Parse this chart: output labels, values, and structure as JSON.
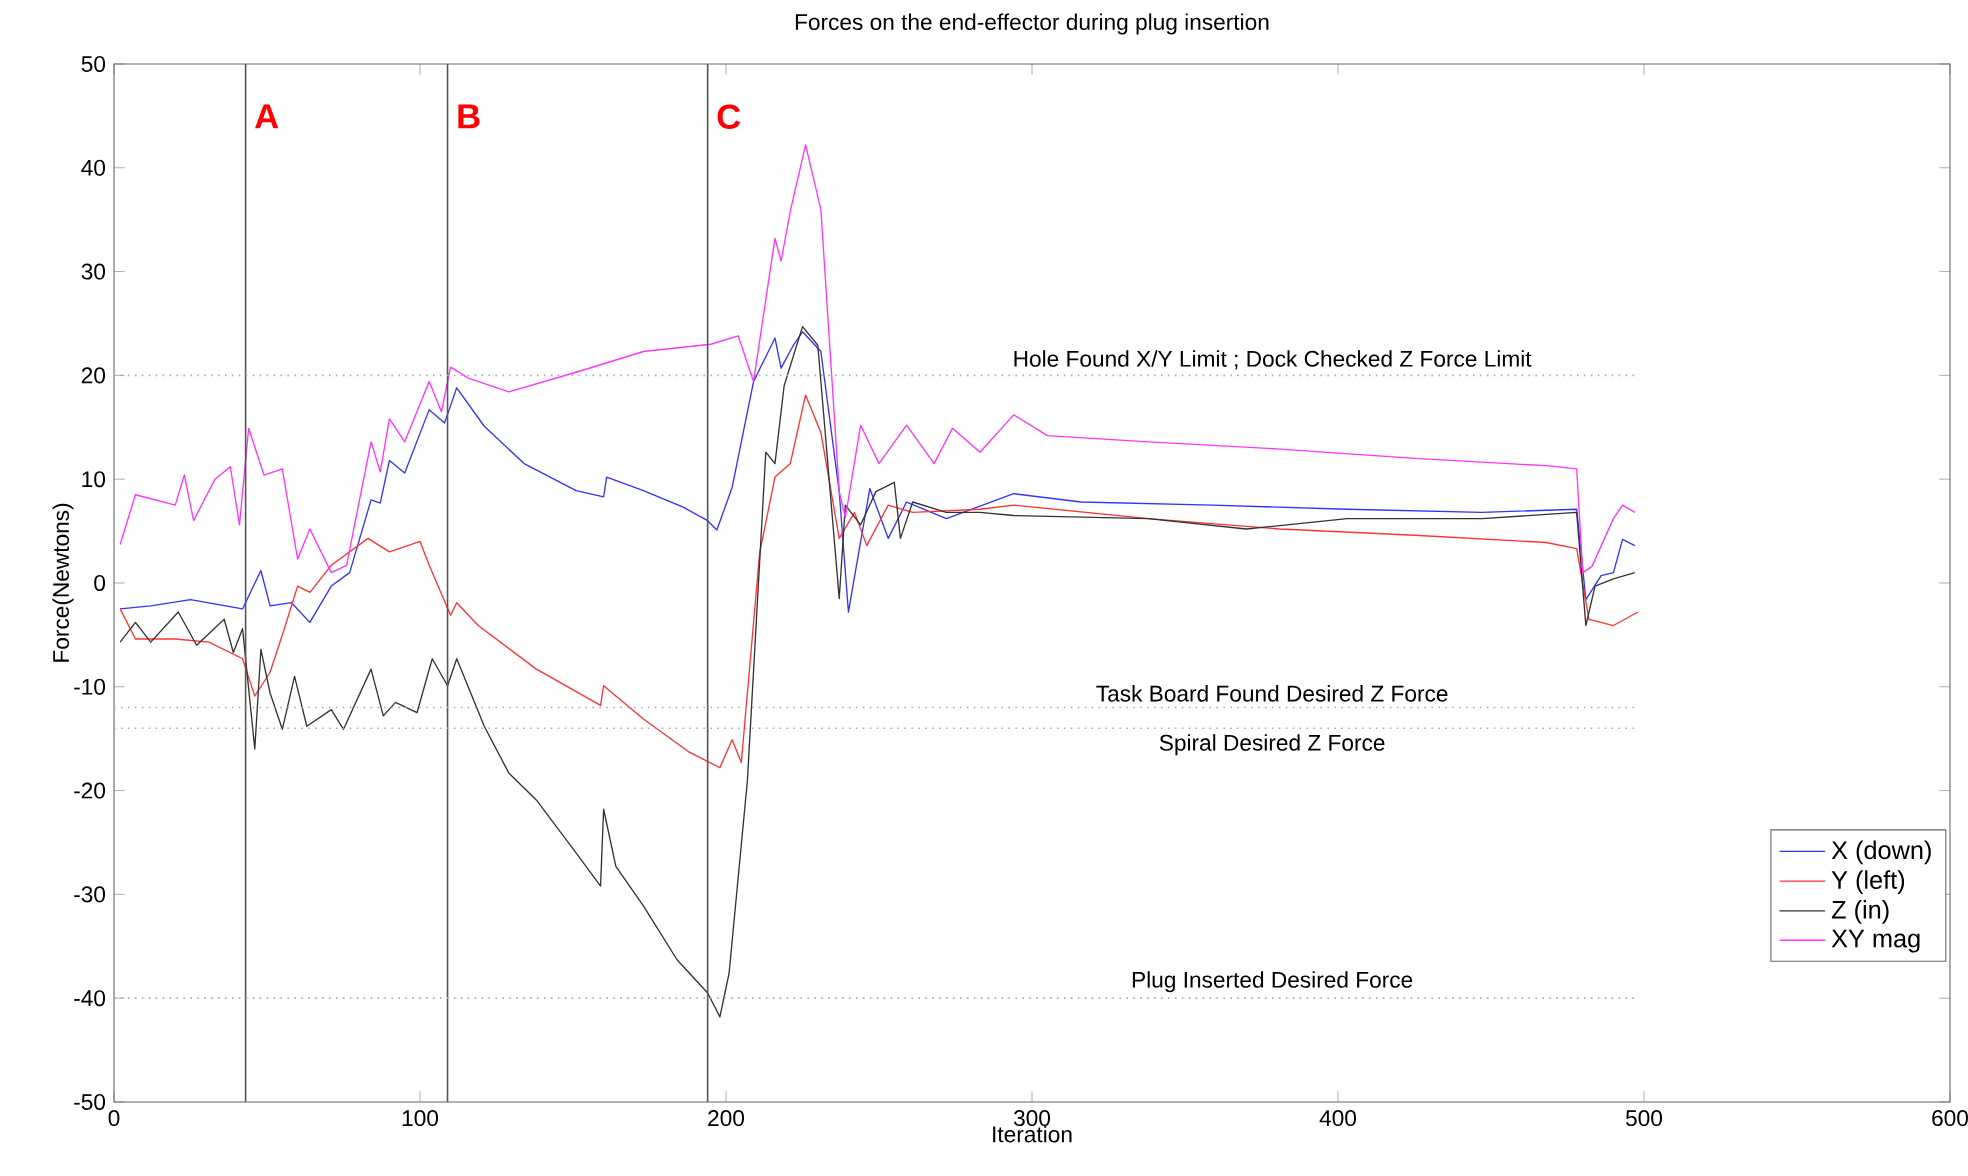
{
  "chart_data": {
    "type": "line",
    "title": "Forces on the end-effector during plug insertion",
    "xlabel": "Iteration",
    "ylabel": "Force(Newtons)",
    "xlim": [
      0,
      600
    ],
    "xticks": [
      0,
      100,
      200,
      300,
      400,
      500,
      600
    ],
    "ylim": [
      -50,
      50
    ],
    "yticks": [
      -50,
      -40,
      -30,
      -20,
      -10,
      0,
      10,
      20,
      30,
      40,
      50
    ],
    "grid": false,
    "legend": "bottom right",
    "marker": "none",
    "line_style": "solid",
    "series": [
      {
        "name": "X (down)",
        "color": "#3333ff",
        "x": [
          2,
          12,
          25,
          42,
          48,
          51,
          58,
          64,
          71,
          77,
          84,
          87,
          90,
          95,
          103,
          108,
          112,
          121,
          134,
          151,
          160,
          161,
          173,
          186,
          194,
          197,
          202,
          209,
          216,
          218,
          222,
          225,
          231,
          237,
          240,
          247,
          253,
          259,
          272,
          294,
          316,
          359,
          403,
          447,
          478,
          481,
          486,
          490,
          493,
          497
        ],
        "values": [
          -2.5,
          -2.2,
          -1.6,
          -2.5,
          1.2,
          -2.2,
          -1.9,
          -3.8,
          -0.3,
          1.0,
          8.0,
          7.7,
          11.8,
          10.6,
          16.7,
          15.4,
          18.8,
          15.1,
          11.5,
          8.9,
          8.3,
          10.2,
          8.9,
          7.3,
          6.0,
          5.1,
          9.2,
          19.4,
          23.6,
          20.7,
          22.9,
          24.2,
          22.3,
          8.8,
          -2.8,
          9.1,
          4.3,
          7.8,
          6.2,
          8.6,
          7.8,
          7.5,
          7.1,
          6.8,
          7.1,
          -1.6,
          0.7,
          1.0,
          4.2,
          3.6
        ]
      },
      {
        "name": "Y (left)",
        "color": "#ff3333",
        "x": [
          2,
          7,
          20,
          31,
          42,
          46,
          51,
          56,
          60,
          64,
          71,
          83,
          90,
          100,
          103,
          110,
          112,
          119,
          138,
          159,
          160,
          173,
          188,
          198,
          202,
          205,
          211,
          216,
          221,
          226,
          231,
          237,
          242,
          246,
          253,
          261,
          283,
          294,
          338,
          381,
          425,
          468,
          478,
          482,
          490,
          498
        ],
        "values": [
          -2.5,
          -5.4,
          -5.4,
          -5.7,
          -7.3,
          -10.9,
          -8.6,
          -4.1,
          -0.3,
          -0.9,
          1.7,
          4.3,
          3.0,
          4.0,
          1.7,
          -3.1,
          -1.9,
          -4.1,
          -8.3,
          -11.8,
          -9.9,
          -13.1,
          -16.3,
          -17.8,
          -15.1,
          -17.3,
          2.9,
          10.2,
          11.5,
          18.1,
          14.5,
          4.3,
          6.8,
          3.6,
          7.5,
          6.8,
          7.1,
          7.5,
          6.2,
          5.2,
          4.6,
          3.9,
          3.3,
          -3.5,
          -4.1,
          -2.8
        ]
      },
      {
        "name": "Z (in)",
        "color": "#333333",
        "x": [
          2,
          7,
          12,
          21,
          27,
          36,
          39,
          42,
          46,
          48,
          51,
          55,
          59,
          63,
          71,
          75,
          84,
          88,
          92,
          99,
          104,
          109,
          112,
          121,
          129,
          138,
          151,
          159,
          160,
          164,
          173,
          184,
          194,
          198,
          201,
          207,
          213,
          216,
          219,
          225,
          230,
          237,
          239,
          244,
          249,
          255,
          257,
          261,
          272,
          283,
          294,
          338,
          370,
          403,
          447,
          478,
          481,
          484,
          490,
          497
        ],
        "values": [
          -5.7,
          -3.8,
          -5.7,
          -2.8,
          -6.0,
          -3.5,
          -6.7,
          -4.4,
          -16.0,
          -6.4,
          -10.6,
          -14.1,
          -9.0,
          -13.8,
          -12.2,
          -14.1,
          -8.3,
          -12.8,
          -11.5,
          -12.5,
          -7.3,
          -9.9,
          -7.3,
          -13.8,
          -18.3,
          -20.9,
          -26.0,
          -29.2,
          -21.8,
          -27.3,
          -31.1,
          -36.3,
          -39.5,
          -41.8,
          -37.6,
          -19.0,
          12.6,
          11.5,
          19.0,
          24.7,
          22.9,
          -1.5,
          7.5,
          5.6,
          8.8,
          9.7,
          4.3,
          7.8,
          6.8,
          6.8,
          6.5,
          6.2,
          5.2,
          6.2,
          6.2,
          6.8,
          -4.1,
          -0.3,
          0.4,
          1.0
        ]
      },
      {
        "name": "XY mag",
        "color": "#ff33ff",
        "x": [
          2,
          7,
          20,
          23,
          26,
          33,
          38,
          41,
          44,
          49,
          55,
          60,
          64,
          71,
          76,
          84,
          87,
          90,
          95,
          103,
          107,
          110,
          116,
          129,
          151,
          173,
          195,
          204,
          209,
          216,
          218,
          221,
          226,
          231,
          237,
          239,
          244,
          250,
          259,
          268,
          274,
          283,
          294,
          305,
          338,
          381,
          425,
          468,
          478,
          480,
          483,
          490,
          493,
          497
        ],
        "values": [
          3.7,
          8.5,
          7.5,
          10.4,
          6.0,
          10.0,
          11.2,
          5.6,
          14.9,
          10.4,
          11.0,
          2.3,
          5.2,
          1.0,
          1.7,
          13.6,
          10.7,
          15.8,
          13.6,
          19.4,
          16.5,
          20.8,
          19.7,
          18.4,
          20.3,
          22.3,
          23.0,
          23.8,
          19.4,
          33.2,
          31.0,
          35.8,
          42.2,
          36.0,
          8.8,
          6.3,
          15.2,
          11.5,
          15.2,
          11.5,
          14.9,
          12.6,
          16.2,
          14.2,
          13.6,
          12.9,
          12.0,
          11.3,
          11.0,
          1.0,
          1.6,
          6.2,
          7.5,
          6.8
        ]
      }
    ],
    "ref_lines": [
      {
        "axis": "x",
        "value": 43,
        "label": "A",
        "color": "#555555",
        "line_style": "solid"
      },
      {
        "axis": "x",
        "value": 109,
        "label": "B",
        "color": "#555555",
        "line_style": "solid"
      },
      {
        "axis": "x",
        "value": 194,
        "label": "C",
        "color": "#555555",
        "line_style": "solid"
      },
      {
        "axis": "y",
        "value": 20,
        "label": "Hole Found X/Y Limit ; Dock Checked Z Force Limit",
        "color": "#aaaaaa",
        "line_style": "dotted"
      },
      {
        "axis": "y",
        "value": -12,
        "label": "Task Board Found Desired Z Force",
        "color": "#aaaaaa",
        "line_style": "dotted"
      },
      {
        "axis": "y",
        "value": -14,
        "label": "Spiral Desired Z Force",
        "color": "#aaaaaa",
        "line_style": "dotted"
      },
      {
        "axis": "y",
        "value": -40,
        "label": "Plug Inserted Desired Force",
        "color": "#aaaaaa",
        "line_style": "dotted"
      }
    ]
  }
}
